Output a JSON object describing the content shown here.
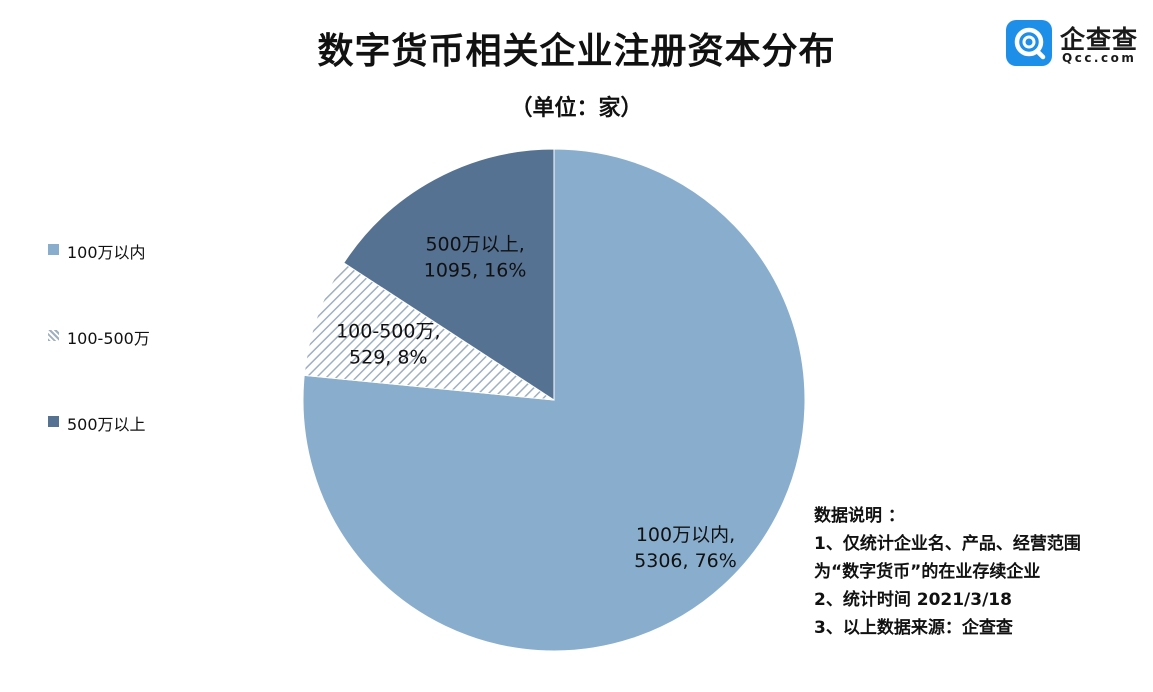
{
  "title": "数字货币相关企业注册资本分布",
  "subtitle": "（单位：家）",
  "logo": {
    "name": "企查查",
    "domain": "Qcc.com"
  },
  "chart_data": {
    "type": "pie",
    "title": "数字货币相关企业注册资本分布",
    "unit": "（单位：家）",
    "legend_position": "left",
    "slices": [
      {
        "label": "100万以内",
        "value": 5306,
        "percent": "76%",
        "color": "#89aecd",
        "pattern": "solid",
        "text_line1": "100万以内,",
        "text_line2": "5306, 76%"
      },
      {
        "label": "100-500万",
        "value": 529,
        "percent": "8%",
        "color": "#9fb0c0",
        "pattern": "hatch",
        "text_line1": "100-500万,",
        "text_line2": "529, 8%"
      },
      {
        "label": "500万以上",
        "value": 1095,
        "percent": "16%",
        "color": "#557293",
        "pattern": "solid",
        "text_line1": "500万以上,",
        "text_line2": "1095, 16%"
      }
    ]
  },
  "notes": {
    "heading": "数据说明 ：",
    "lines": [
      "1、仅统计企业名、产品、经营范围",
      "为“数字货币”的在业存续企业",
      "2、统计时间 2021/3/18",
      "3、以上数据来源：企查查"
    ]
  }
}
